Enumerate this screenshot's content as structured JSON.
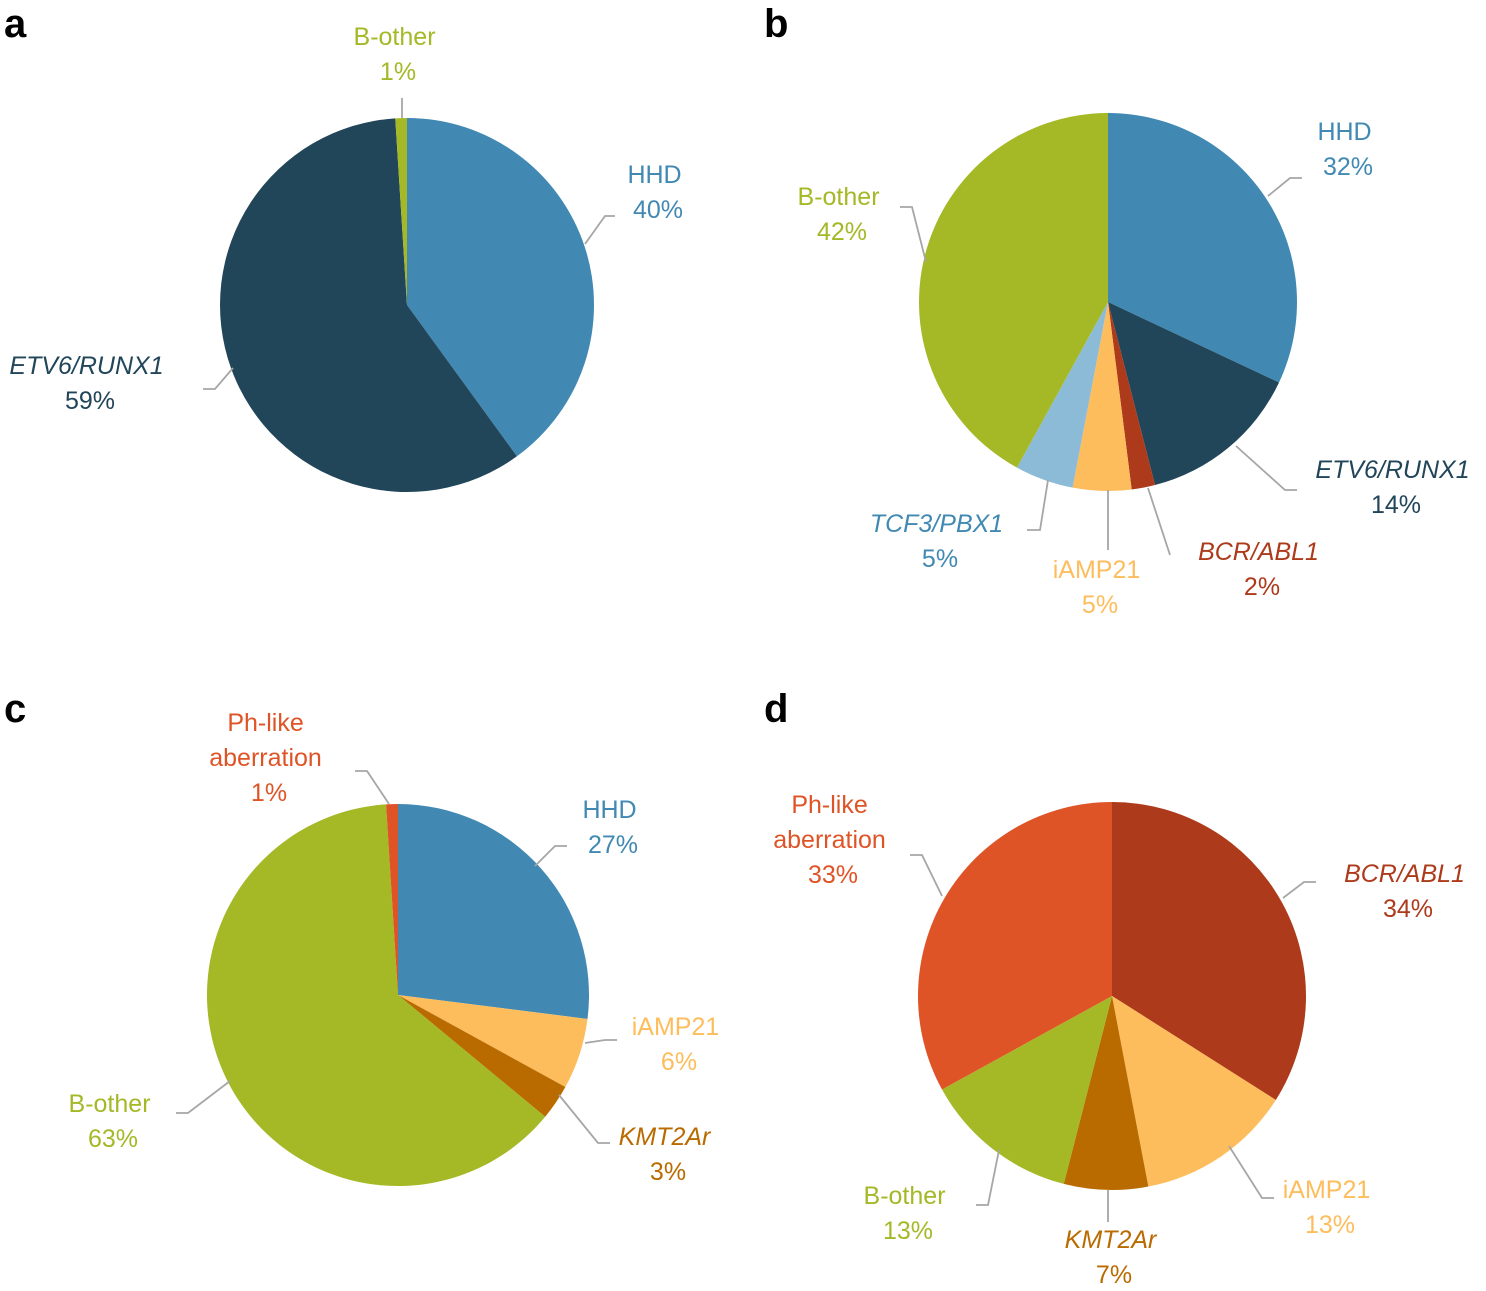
{
  "chart_data": [
    {
      "type": "pie",
      "panel": "a",
      "slices": [
        {
          "name": "HHD",
          "value": 40,
          "label_text": "40%",
          "color": "#4189b3",
          "italic": false
        },
        {
          "name": "ETV6/RUNX1",
          "value": 59,
          "label_text": "59%",
          "color": "#214559",
          "italic": true
        },
        {
          "name": "B-other",
          "value": 1,
          "label_text": "1%",
          "color": "#a5b826",
          "italic": false
        }
      ]
    },
    {
      "type": "pie",
      "panel": "b",
      "slices": [
        {
          "name": "HHD",
          "value": 32,
          "label_text": "32%",
          "color": "#4189b3",
          "italic": false
        },
        {
          "name": "ETV6/RUNX1",
          "value": 14,
          "label_text": "14%",
          "color": "#214559",
          "italic": true
        },
        {
          "name": "BCR/ABL1",
          "value": 2,
          "label_text": "2%",
          "color": "#ad3a1a",
          "italic": true
        },
        {
          "name": "iAMP21",
          "value": 5,
          "label_text": "5%",
          "color": "#fdbd5c",
          "italic": false
        },
        {
          "name": "TCF3/PBX1",
          "value": 5,
          "label_text": "5%",
          "color": "#8bbbd6",
          "italic": true
        },
        {
          "name": "B-other",
          "value": 42,
          "label_text": "42%",
          "color": "#a5b826",
          "italic": false
        }
      ]
    },
    {
      "type": "pie",
      "panel": "c",
      "slices": [
        {
          "name": "HHD",
          "value": 27,
          "label_text": "27%",
          "color": "#4189b3",
          "italic": false
        },
        {
          "name": "iAMP21",
          "value": 6,
          "label_text": "6%",
          "color": "#fdbd5c",
          "italic": false
        },
        {
          "name": "KMT2Ar",
          "value": 3,
          "label_text": "3%",
          "color": "#b96b00",
          "italic": true
        },
        {
          "name": "B-other",
          "value": 63,
          "label_text": "63%",
          "color": "#a5b826",
          "italic": false
        },
        {
          "name": "Ph-like aberration",
          "value": 1,
          "label_text": "1%",
          "color": "#df5426",
          "italic": false
        }
      ]
    },
    {
      "type": "pie",
      "panel": "d",
      "slices": [
        {
          "name": "BCR/ABL1",
          "value": 34,
          "label_text": "34%",
          "color": "#ad3a1a",
          "italic": true
        },
        {
          "name": "iAMP21",
          "value": 13,
          "label_text": "13%",
          "color": "#fdbd5c",
          "italic": false
        },
        {
          "name": "KMT2Ar",
          "value": 7,
          "label_text": "7%",
          "color": "#b96b00",
          "italic": true
        },
        {
          "name": "B-other",
          "value": 13,
          "label_text": "13%",
          "color": "#a5b826",
          "italic": false
        },
        {
          "name": "Ph-like aberration",
          "value": 33,
          "label_text": "33%",
          "color": "#df5426",
          "italic": false
        }
      ]
    }
  ]
}
